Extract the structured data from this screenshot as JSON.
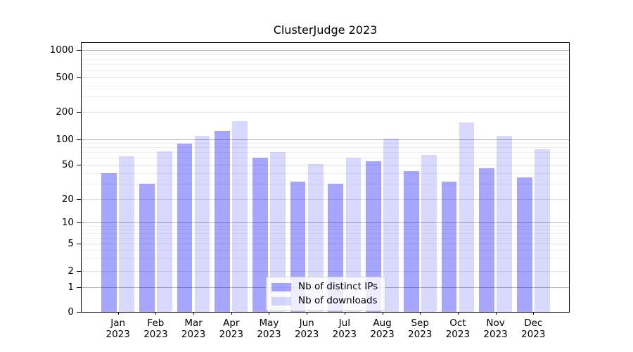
{
  "title": "ClusterJudge 2023",
  "chart_data": {
    "type": "bar",
    "title": "ClusterJudge 2023",
    "categories": [
      "Jan",
      "Feb",
      "Mar",
      "Apr",
      "May",
      "Jun",
      "Jul",
      "Aug",
      "Sep",
      "Oct",
      "Nov",
      "Dec"
    ],
    "year_label": "2023",
    "series": [
      {
        "name": "Nb of distinct IPs",
        "color": "rgba(0,0,255,0.35)",
        "values": [
          40,
          30,
          89,
          123,
          60,
          32,
          30,
          55,
          42,
          32,
          45,
          36
        ]
      },
      {
        "name": "Nb of downloads",
        "color": "rgba(0,0,255,0.15)",
        "values": [
          63,
          72,
          108,
          158,
          70,
          51,
          60,
          101,
          65,
          152,
          108,
          76
        ]
      }
    ],
    "xlabel": "",
    "ylabel": "",
    "y_axis": {
      "scale": "symlog",
      "ticks": [
        0,
        1,
        2,
        5,
        10,
        20,
        50,
        100,
        200,
        500,
        1000
      ],
      "minor_ticks": [
        3,
        4,
        6,
        7,
        8,
        9,
        30,
        40,
        60,
        70,
        80,
        90,
        300,
        400,
        600,
        700,
        800,
        900
      ],
      "ylim": [
        0,
        1250
      ]
    },
    "grid": true,
    "legend": {
      "position": "lower center",
      "entries": [
        "Nb of distinct IPs",
        "Nb of downloads"
      ]
    },
    "colors": {
      "bar_dark": "rgba(0,0,255,0.35)",
      "bar_light": "rgba(0,0,255,0.15)",
      "grid_major": "#b2b2b2",
      "grid_minor": "#efefef",
      "axis": "#000000"
    }
  }
}
